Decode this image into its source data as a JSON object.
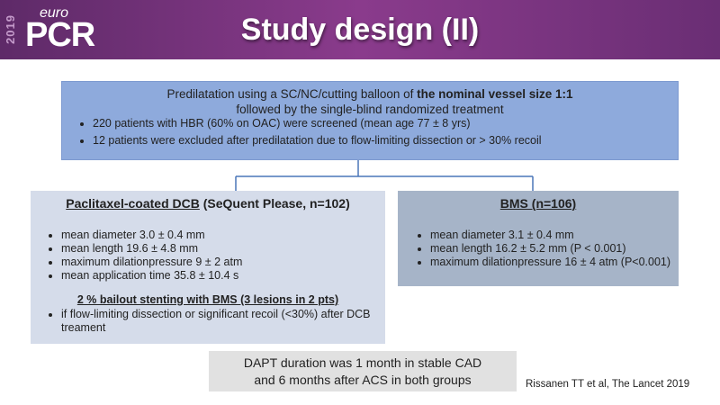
{
  "header": {
    "year": "2019",
    "brand_prefix": "euro",
    "brand": "PCR",
    "title": "Study design (II)"
  },
  "top_box": {
    "line1_plain": "Predilatation using a SC/NC/cutting balloon of ",
    "line1_bold": "the nominal vessel size 1:1",
    "line2": "followed by the single-blind randomized treatment",
    "bullets": [
      "220 patients with HBR (60% on OAC) were screened (mean age 77 ± 8 yrs)",
      "12 patients were excluded after predilatation due to flow-limiting dissection or > 30% recoil"
    ]
  },
  "left_box": {
    "title_underlined": "Paclitaxel-coated DCB",
    "title_rest": " (SeQuent Please, n=102)",
    "bullets": [
      "mean diameter 3.0 ± 0.4 mm",
      "mean length 19.6 ± 4.8 mm",
      "maximum dilationpressure 9 ± 2 atm",
      "mean application time 35.8 ± 10.4 s"
    ],
    "subheading": "2 % bailout stenting with BMS (3 lesions in 2 pts)",
    "sub_bullets": [
      "if flow-limiting dissection or significant recoil (<30%) after DCB treament"
    ]
  },
  "right_box": {
    "title": "BMS (n=106)",
    "bullets": [
      "mean diameter 3.1 ± 0.4 mm",
      "mean length 16.2 ± 5.2 mm (P < 0.001)",
      "maximum dilationpressure  16 ± 4 atm (P<0.001)"
    ]
  },
  "bottom_box": {
    "line1": "DAPT duration was 1 month in stable CAD",
    "line2": "and 6 months after ACS in both groups"
  },
  "citation": "Rissanen TT et al, The Lancet 2019"
}
